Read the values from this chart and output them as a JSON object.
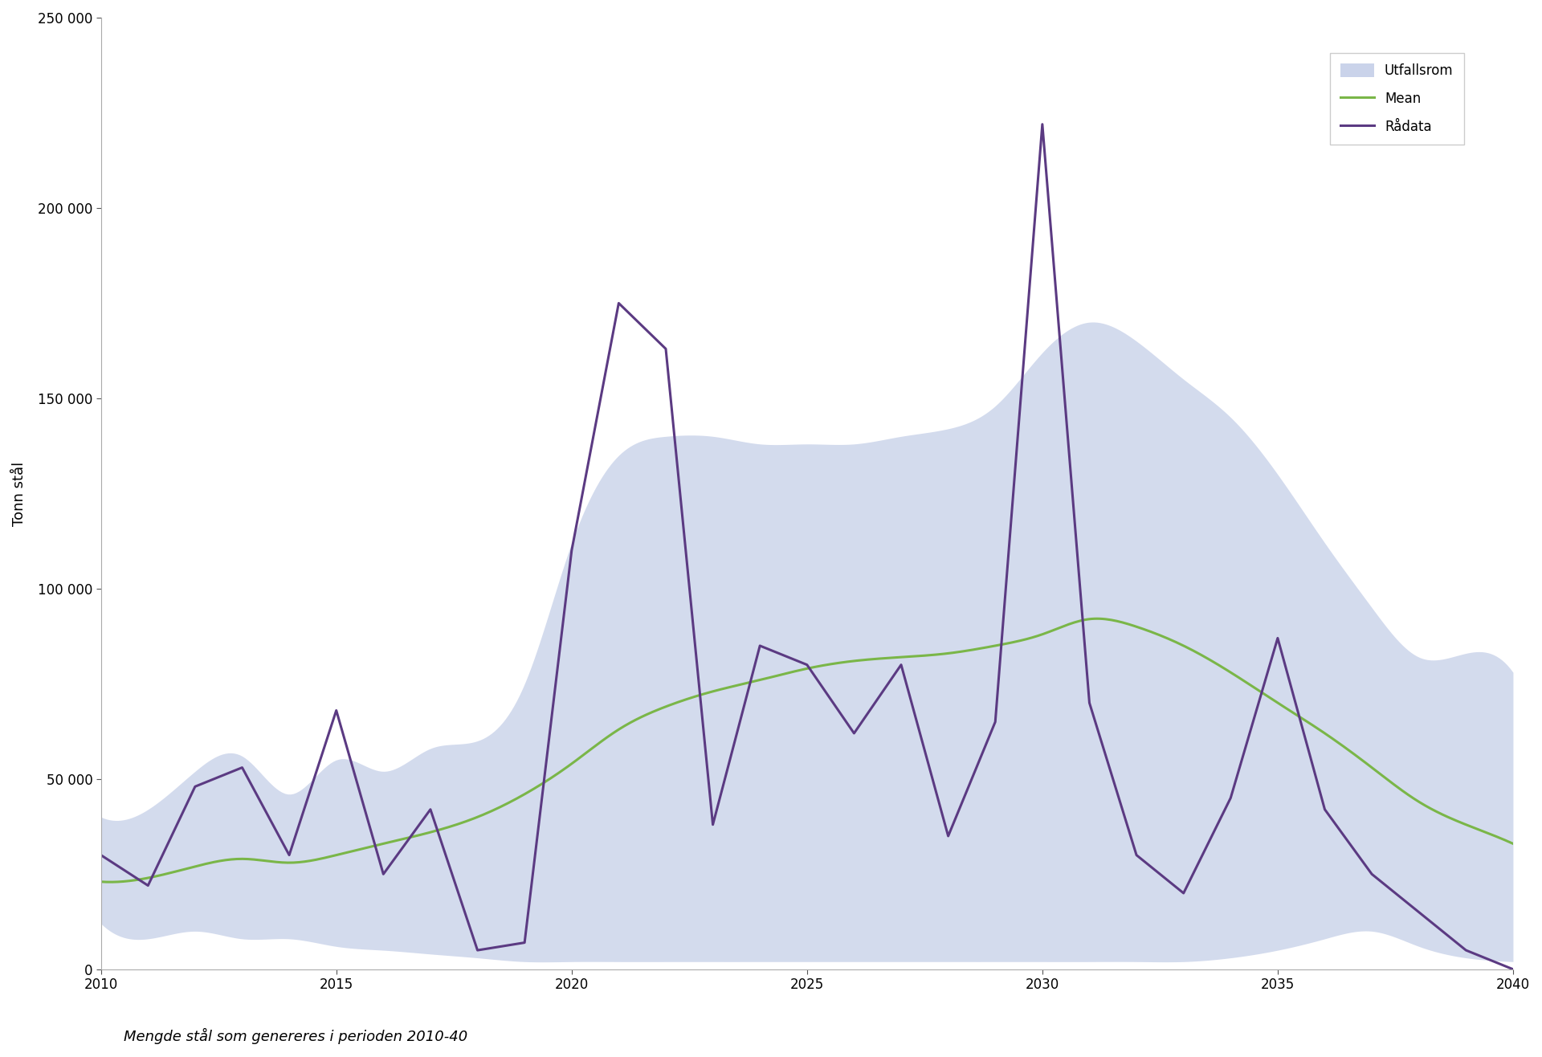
{
  "years": [
    2010,
    2011,
    2012,
    2013,
    2014,
    2015,
    2016,
    2017,
    2018,
    2019,
    2020,
    2021,
    2022,
    2023,
    2024,
    2025,
    2026,
    2027,
    2028,
    2029,
    2030,
    2031,
    2032,
    2033,
    2034,
    2035,
    2036,
    2037,
    2038,
    2039,
    2040
  ],
  "rawdata": [
    30000,
    22000,
    48000,
    53000,
    30000,
    68000,
    25000,
    42000,
    5000,
    7000,
    110000,
    175000,
    163000,
    38000,
    85000,
    80000,
    62000,
    80000,
    35000,
    65000,
    222000,
    70000,
    30000,
    20000,
    45000,
    87000,
    42000,
    25000,
    15000,
    5000,
    0
  ],
  "mean": [
    23000,
    24000,
    27000,
    29000,
    28000,
    30000,
    33000,
    36000,
    40000,
    46000,
    54000,
    63000,
    69000,
    73000,
    76000,
    79000,
    81000,
    82000,
    83000,
    85000,
    88000,
    92000,
    90000,
    85000,
    78000,
    70000,
    62000,
    53000,
    44000,
    38000,
    33000
  ],
  "upper": [
    40000,
    42000,
    52000,
    56000,
    46000,
    55000,
    52000,
    58000,
    60000,
    75000,
    112000,
    135000,
    140000,
    140000,
    138000,
    138000,
    138000,
    140000,
    142000,
    148000,
    162000,
    170000,
    165000,
    155000,
    145000,
    130000,
    112000,
    95000,
    82000,
    83000,
    78000
  ],
  "lower": [
    12000,
    8000,
    10000,
    8000,
    8000,
    6000,
    5000,
    4000,
    3000,
    2000,
    2000,
    2000,
    2000,
    2000,
    2000,
    2000,
    2000,
    2000,
    2000,
    2000,
    2000,
    2000,
    2000,
    2000,
    3000,
    5000,
    8000,
    10000,
    6000,
    3000,
    2000
  ],
  "fill_color": "#c5cfe8",
  "fill_alpha": 0.75,
  "mean_color": "#7ab648",
  "rawdata_color": "#5b3a82",
  "ylabel": "Tonn stål",
  "xlabel": "",
  "caption": "Mengde stål som genereres i perioden 2010-40",
  "ylim": [
    0,
    250000
  ],
  "yticks": [
    0,
    50000,
    100000,
    150000,
    200000,
    250000
  ],
  "xlim": [
    2010,
    2040
  ],
  "xticks": [
    2010,
    2015,
    2020,
    2025,
    2030,
    2035,
    2040
  ],
  "legend_labels": [
    "Utfallsrom",
    "Mean",
    "Rådata"
  ],
  "axis_fontsize": 13,
  "tick_fontsize": 12,
  "caption_fontsize": 13,
  "line_width": 2.2
}
